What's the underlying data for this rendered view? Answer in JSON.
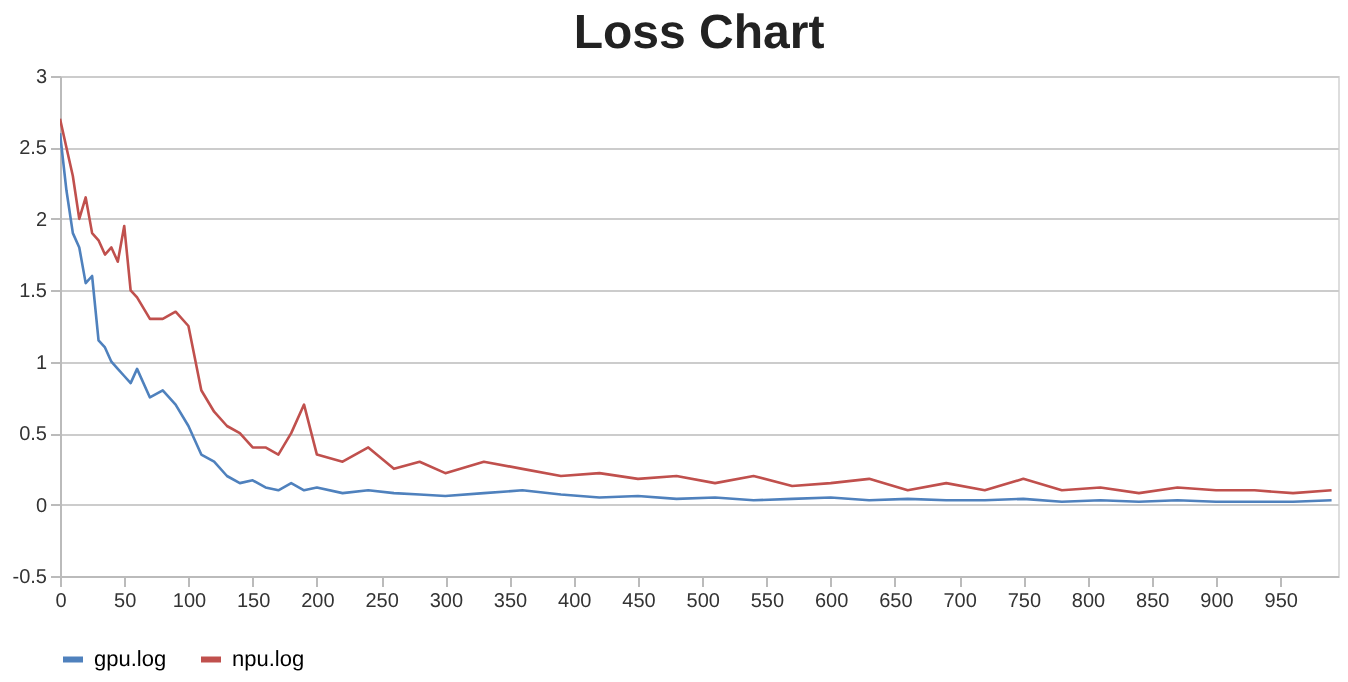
{
  "chart_data": {
    "type": "line",
    "title": "Loss Chart",
    "x": [
      0,
      5,
      10,
      15,
      20,
      25,
      30,
      35,
      40,
      45,
      50,
      55,
      60,
      70,
      80,
      90,
      100,
      110,
      120,
      130,
      140,
      150,
      160,
      170,
      180,
      190,
      200,
      220,
      240,
      260,
      280,
      300,
      330,
      360,
      390,
      420,
      450,
      480,
      510,
      540,
      570,
      600,
      630,
      660,
      690,
      720,
      750,
      780,
      810,
      840,
      870,
      900,
      930,
      960,
      990
    ],
    "series": [
      {
        "name": "gpu.log",
        "color": "#4f81bd",
        "values": [
          2.6,
          2.2,
          1.9,
          1.8,
          1.55,
          1.6,
          1.15,
          1.1,
          1.0,
          0.95,
          0.9,
          0.85,
          0.95,
          0.75,
          0.8,
          0.7,
          0.55,
          0.35,
          0.3,
          0.2,
          0.15,
          0.17,
          0.12,
          0.1,
          0.15,
          0.1,
          0.12,
          0.08,
          0.1,
          0.08,
          0.07,
          0.06,
          0.08,
          0.1,
          0.07,
          0.05,
          0.06,
          0.04,
          0.05,
          0.03,
          0.04,
          0.05,
          0.03,
          0.04,
          0.03,
          0.03,
          0.04,
          0.02,
          0.03,
          0.02,
          0.03,
          0.02,
          0.02,
          0.02,
          0.03
        ]
      },
      {
        "name": "npu.log",
        "color": "#c0504d",
        "values": [
          2.7,
          2.5,
          2.3,
          2.0,
          2.15,
          1.9,
          1.85,
          1.75,
          1.8,
          1.7,
          1.95,
          1.5,
          1.45,
          1.3,
          1.3,
          1.35,
          1.25,
          0.8,
          0.65,
          0.55,
          0.5,
          0.4,
          0.4,
          0.35,
          0.5,
          0.7,
          0.35,
          0.3,
          0.4,
          0.25,
          0.3,
          0.22,
          0.3,
          0.25,
          0.2,
          0.22,
          0.18,
          0.2,
          0.15,
          0.2,
          0.13,
          0.15,
          0.18,
          0.1,
          0.15,
          0.1,
          0.18,
          0.1,
          0.12,
          0.08,
          0.12,
          0.1,
          0.1,
          0.08,
          0.1
        ]
      }
    ],
    "xlim": [
      0,
      995
    ],
    "xticks": [
      0,
      50,
      100,
      150,
      200,
      250,
      300,
      350,
      400,
      450,
      500,
      550,
      600,
      650,
      700,
      750,
      800,
      850,
      900,
      950
    ],
    "ylim": [
      -0.5,
      3
    ],
    "yticks": [
      -0.5,
      0,
      0.5,
      1,
      1.5,
      2,
      2.5,
      3
    ],
    "grid": "y",
    "legend": "bottom",
    "marker": "none",
    "line_style": "solid"
  }
}
